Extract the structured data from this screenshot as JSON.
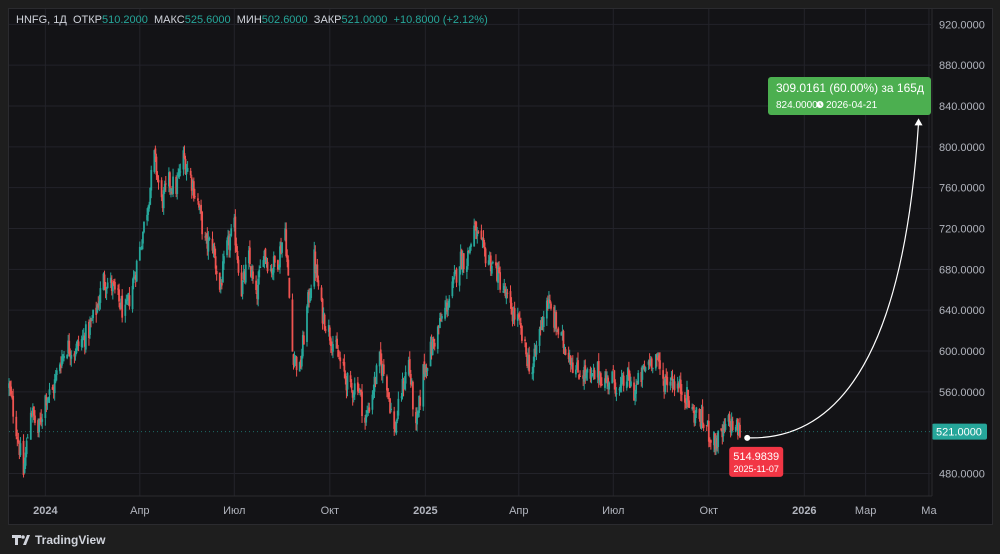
{
  "legend": {
    "symbol": "HNFG, 1Д",
    "open_label": "ОТКР",
    "open": "510.2000",
    "high_label": "МАКС",
    "high": "525.6000",
    "low_label": "МИН",
    "low": "502.6000",
    "close_label": "ЗАКР",
    "close": "521.0000",
    "change": "+10.8000 (+2.12%)"
  },
  "colors": {
    "up": "#26a69a",
    "down": "#ef5350",
    "target_box": "#4caf50",
    "start_box": "#f23645",
    "price_tag": "#26a69a",
    "background": "#131316",
    "grid": "#23232a",
    "axis_text": "#b2b5be"
  },
  "footer": {
    "logo_text": "TradingView"
  },
  "chart_data": {
    "type": "candlestick",
    "y_axis": {
      "ticks": [
        "920.0000",
        "880.0000",
        "840.0000",
        "800.0000",
        "760.0000",
        "720.0000",
        "680.0000",
        "640.0000",
        "600.0000",
        "560.0000",
        "480.0000"
      ],
      "range": [
        458,
        935
      ],
      "position": "right"
    },
    "x_axis": {
      "ticks": [
        {
          "label": "2024",
          "date": "2024-01-01",
          "bold": true
        },
        {
          "label": "Апр",
          "date": "2024-04-01",
          "bold": false
        },
        {
          "label": "Июл",
          "date": "2024-07-01",
          "bold": false
        },
        {
          "label": "Окт",
          "date": "2024-10-01",
          "bold": false
        },
        {
          "label": "2025",
          "date": "2025-01-01",
          "bold": true
        },
        {
          "label": "Апр",
          "date": "2025-04-01",
          "bold": false
        },
        {
          "label": "Июл",
          "date": "2025-07-01",
          "bold": false
        },
        {
          "label": "Окт",
          "date": "2025-10-01",
          "bold": false
        },
        {
          "label": "2026",
          "date": "2026-01-01",
          "bold": true
        },
        {
          "label": "Мар",
          "date": "2026-03-01",
          "bold": false
        },
        {
          "label": "Ма",
          "date": "2026-05-01",
          "bold": false
        }
      ],
      "range": [
        "2023-11-27",
        "2026-05-03"
      ]
    },
    "price_path": [
      [
        "2023-11-27",
        565
      ],
      [
        "2023-12-04",
        525
      ],
      [
        "2023-12-11",
        480
      ],
      [
        "2023-12-18",
        545
      ],
      [
        "2023-12-25",
        520
      ],
      [
        "2024-01-01",
        555
      ],
      [
        "2024-01-08",
        560
      ],
      [
        "2024-01-15",
        590
      ],
      [
        "2024-01-22",
        605
      ],
      [
        "2024-01-29",
        600
      ],
      [
        "2024-02-05",
        610
      ],
      [
        "2024-02-12",
        620
      ],
      [
        "2024-02-19",
        640
      ],
      [
        "2024-02-26",
        670
      ],
      [
        "2024-03-04",
        665
      ],
      [
        "2024-03-11",
        650
      ],
      [
        "2024-03-18",
        635
      ],
      [
        "2024-03-25",
        665
      ],
      [
        "2024-04-01",
        700
      ],
      [
        "2024-04-08",
        740
      ],
      [
        "2024-04-15",
        790
      ],
      [
        "2024-04-22",
        745
      ],
      [
        "2024-04-29",
        765
      ],
      [
        "2024-05-06",
        760
      ],
      [
        "2024-05-13",
        790
      ],
      [
        "2024-05-20",
        770
      ],
      [
        "2024-05-27",
        745
      ],
      [
        "2024-06-03",
        705
      ],
      [
        "2024-06-10",
        705
      ],
      [
        "2024-06-17",
        660
      ],
      [
        "2024-06-24",
        700
      ],
      [
        "2024-07-01",
        720
      ],
      [
        "2024-07-08",
        660
      ],
      [
        "2024-07-15",
        690
      ],
      [
        "2024-07-22",
        650
      ],
      [
        "2024-07-29",
        700
      ],
      [
        "2024-08-05",
        680
      ],
      [
        "2024-08-12",
        690
      ],
      [
        "2024-08-19",
        720
      ],
      [
        "2024-08-26",
        600
      ],
      [
        "2024-09-02",
        580
      ],
      [
        "2024-09-09",
        640
      ],
      [
        "2024-09-16",
        690
      ],
      [
        "2024-09-23",
        640
      ],
      [
        "2024-09-30",
        620
      ],
      [
        "2024-10-07",
        600
      ],
      [
        "2024-10-14",
        580
      ],
      [
        "2024-10-21",
        560
      ],
      [
        "2024-10-28",
        570
      ],
      [
        "2024-11-04",
        530
      ],
      [
        "2024-11-11",
        560
      ],
      [
        "2024-11-18",
        590
      ],
      [
        "2024-11-25",
        570
      ],
      [
        "2024-12-02",
        520
      ],
      [
        "2024-12-09",
        560
      ],
      [
        "2024-12-16",
        590
      ],
      [
        "2024-12-23",
        520
      ],
      [
        "2024-12-30",
        580
      ],
      [
        "2025-01-06",
        600
      ],
      [
        "2025-01-13",
        620
      ],
      [
        "2025-01-20",
        640
      ],
      [
        "2025-01-27",
        660
      ],
      [
        "2025-02-03",
        690
      ],
      [
        "2025-02-10",
        690
      ],
      [
        "2025-02-17",
        720
      ],
      [
        "2025-02-24",
        700
      ],
      [
        "2025-03-03",
        690
      ],
      [
        "2025-03-10",
        680
      ],
      [
        "2025-03-17",
        660
      ],
      [
        "2025-03-24",
        640
      ],
      [
        "2025-03-31",
        630
      ],
      [
        "2025-04-07",
        600
      ],
      [
        "2025-04-14",
        580
      ],
      [
        "2025-04-21",
        620
      ],
      [
        "2025-04-28",
        650
      ],
      [
        "2025-05-05",
        630
      ],
      [
        "2025-05-12",
        610
      ],
      [
        "2025-05-19",
        600
      ],
      [
        "2025-05-26",
        580
      ],
      [
        "2025-06-02",
        580
      ],
      [
        "2025-06-09",
        570
      ],
      [
        "2025-06-16",
        580
      ],
      [
        "2025-06-23",
        570
      ],
      [
        "2025-06-30",
        575
      ],
      [
        "2025-07-07",
        560
      ],
      [
        "2025-07-14",
        575
      ],
      [
        "2025-07-21",
        560
      ],
      [
        "2025-07-28",
        575
      ],
      [
        "2025-08-04",
        590
      ],
      [
        "2025-08-11",
        595
      ],
      [
        "2025-08-18",
        570
      ],
      [
        "2025-08-25",
        575
      ],
      [
        "2025-09-01",
        565
      ],
      [
        "2025-09-08",
        560
      ],
      [
        "2025-09-15",
        540
      ],
      [
        "2025-09-22",
        535
      ],
      [
        "2025-09-29",
        525
      ],
      [
        "2025-10-06",
        510
      ],
      [
        "2025-10-13",
        515
      ],
      [
        "2025-10-20",
        530
      ],
      [
        "2025-10-27",
        525
      ],
      [
        "2025-11-03",
        518
      ]
    ],
    "annotation": {
      "start_date": "2025-11-07",
      "start_price": 514.9839,
      "start_label": "514.9839",
      "start_date_label": "2025-11-07",
      "end_date": "2026-04-21",
      "end_price": 824.0,
      "target_line1": "309.0161 (60.00%) за 165д",
      "target_line2_price": "824.0000",
      "target_line2_date": "2026-04-21"
    },
    "last_price": 521.0,
    "last_price_label": "521.0000"
  }
}
